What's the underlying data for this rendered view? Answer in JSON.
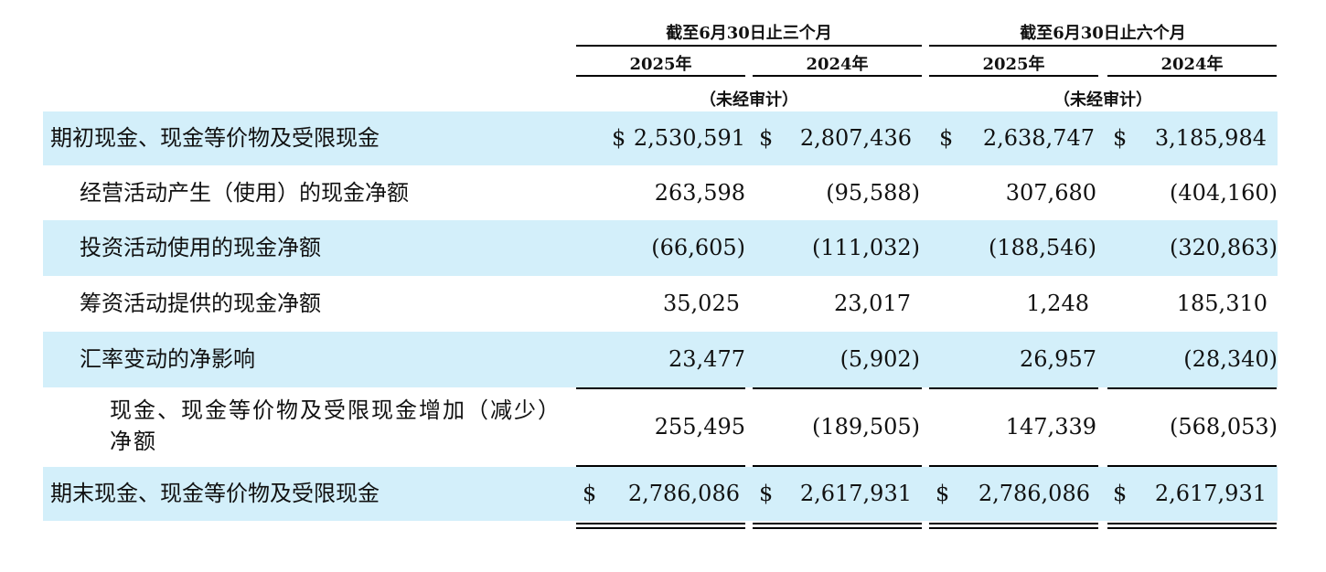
{
  "header": {
    "three_months": "截至6月30日止三个月",
    "six_months": "截至6月30日止六个月",
    "years": [
      "2025年",
      "2024年",
      "2025年",
      "2024年"
    ],
    "unaudited": "（未经审计）"
  },
  "rows": [
    {
      "label": "期初现金、现金等价物及受限现金",
      "cur": [
        "$",
        "$",
        "$",
        "$"
      ],
      "values": [
        "2,530,591",
        "2,807,436",
        "2,638,747",
        "3,185,984"
      ]
    },
    {
      "label": "经营活动产生（使用）的现金净额",
      "values": [
        "263,598",
        "(95,588)",
        "307,680",
        "(404,160)"
      ]
    },
    {
      "label": "投资活动使用的现金净额",
      "values": [
        "(66,605)",
        "(111,032)",
        "(188,546)",
        "(320,863)"
      ]
    },
    {
      "label": "筹资活动提供的现金净额",
      "values": [
        "35,025",
        "23,017",
        "1,248",
        "185,310"
      ]
    },
    {
      "label": "汇率变动的净影响",
      "values": [
        "23,477",
        "(5,902)",
        "26,957",
        "(28,340)"
      ]
    },
    {
      "label": "现金、现金等价物及受限现金增加（减少）净额",
      "values": [
        "255,495",
        "(189,505)",
        "147,339",
        "(568,053)"
      ]
    },
    {
      "label": "期末现金、现金等价物及受限现金",
      "cur": [
        "$",
        "$",
        "$",
        "$"
      ],
      "values": [
        "2,786,086",
        "2,617,931",
        "2,786,086",
        "2,617,931"
      ]
    }
  ]
}
